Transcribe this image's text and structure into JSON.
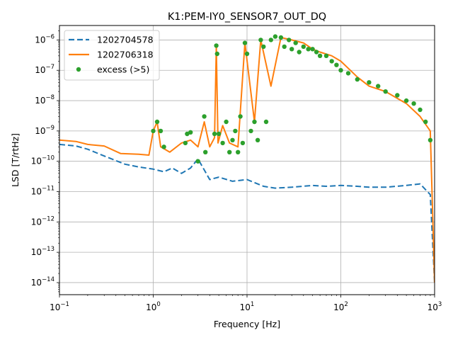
{
  "chart_data": {
    "type": "line",
    "title": "K1:PEM-IY0_SENSOR7_OUT_DQ",
    "xlabel": "Frequency [Hz]",
    "ylabel": "LSD [T/rtHz]",
    "xscale": "log",
    "yscale": "log",
    "xlim": [
      0.1,
      1000
    ],
    "ylim": [
      4e-15,
      3e-06
    ],
    "grid": true,
    "legend_position": "top-left",
    "x_ticks": [
      {
        "value": 0.1,
        "base": "10",
        "exp": "−1"
      },
      {
        "value": 1,
        "base": "10",
        "exp": "0"
      },
      {
        "value": 10,
        "base": "10",
        "exp": "1"
      },
      {
        "value": 100,
        "base": "10",
        "exp": "2"
      },
      {
        "value": 1000,
        "base": "10",
        "exp": "3"
      }
    ],
    "y_ticks": [
      {
        "value": 1e-14,
        "base": "10",
        "exp": "−14"
      },
      {
        "value": 1e-13,
        "base": "10",
        "exp": "−13"
      },
      {
        "value": 1e-12,
        "base": "10",
        "exp": "−12"
      },
      {
        "value": 1e-11,
        "base": "10",
        "exp": "−11"
      },
      {
        "value": 1e-10,
        "base": "10",
        "exp": "−10"
      },
      {
        "value": 1e-09,
        "base": "10",
        "exp": "−9"
      },
      {
        "value": 1e-08,
        "base": "10",
        "exp": "−8"
      },
      {
        "value": 1e-07,
        "base": "10",
        "exp": "−7"
      },
      {
        "value": 1e-06,
        "base": "10",
        "exp": "−6"
      }
    ],
    "series": [
      {
        "name": "1202704578",
        "color": "#1f77b4",
        "style": "dashed",
        "x": [
          0.1,
          0.15,
          0.2,
          0.3,
          0.5,
          0.7,
          1.0,
          1.3,
          1.6,
          2.0,
          2.5,
          3.0,
          4.0,
          5.0,
          7.0,
          10,
          15,
          20,
          30,
          50,
          70,
          100,
          150,
          200,
          300,
          500,
          700,
          900,
          1000
        ],
        "y": [
          3.6e-10,
          3.2e-10,
          2.5e-10,
          1.5e-10,
          8e-11,
          6.5e-11,
          5.5e-11,
          4.5e-11,
          6e-11,
          4e-11,
          6e-11,
          1.2e-10,
          2.5e-11,
          3e-11,
          2.2e-11,
          2.5e-11,
          1.5e-11,
          1.3e-11,
          1.4e-11,
          1.6e-11,
          1.5e-11,
          1.6e-11,
          1.5e-11,
          1.4e-11,
          1.4e-11,
          1.6e-11,
          1.8e-11,
          8e-12,
          1e-14
        ]
      },
      {
        "name": "1202706318",
        "color": "#ff7f0e",
        "style": "solid",
        "x": [
          0.1,
          0.15,
          0.2,
          0.3,
          0.45,
          0.7,
          0.9,
          1.0,
          1.1,
          1.2,
          1.5,
          2.0,
          2.5,
          3.0,
          3.5,
          4.0,
          4.5,
          4.7,
          4.9,
          5.5,
          6.5,
          8.0,
          9.5,
          12,
          14,
          18,
          23,
          30,
          40,
          50,
          60,
          80,
          100,
          150,
          200,
          300,
          500,
          700,
          900,
          1000
        ],
        "y": [
          5e-10,
          4.5e-10,
          3.6e-10,
          3.2e-10,
          1.8e-10,
          1.7e-10,
          1.6e-10,
          1e-09,
          2e-09,
          3e-10,
          2e-10,
          4e-10,
          5e-10,
          3e-10,
          2e-09,
          3e-10,
          6e-10,
          6e-07,
          4e-10,
          1.5e-09,
          4e-10,
          3e-10,
          8e-07,
          2e-09,
          1e-06,
          3e-08,
          1.2e-06,
          1e-06,
          8e-07,
          5e-07,
          4e-07,
          3e-07,
          2e-07,
          6e-08,
          3e-08,
          2e-08,
          8e-09,
          3e-09,
          1e-09,
          1e-14
        ]
      }
    ],
    "excess": {
      "name": "excess (>5)",
      "color": "#2ca02c",
      "x": [
        1.0,
        1.1,
        1.2,
        1.3,
        2.2,
        2.3,
        2.5,
        3.0,
        3.5,
        3.6,
        4.5,
        4.7,
        4.8,
        5.0,
        5.5,
        6.0,
        6.5,
        7.0,
        7.5,
        8.0,
        8.5,
        9.0,
        9.5,
        10,
        11,
        12,
        13,
        14,
        15,
        16,
        18,
        20,
        23,
        25,
        28,
        30,
        33,
        36,
        40,
        45,
        50,
        55,
        60,
        70,
        80,
        90,
        100,
        120,
        150,
        200,
        250,
        300,
        400,
        500,
        600,
        700,
        800,
        900
      ],
      "y": [
        1e-09,
        2e-09,
        1e-09,
        3e-10,
        4e-10,
        8e-10,
        9e-10,
        1e-10,
        3e-09,
        2e-10,
        8e-10,
        6.5e-07,
        3.5e-07,
        8e-10,
        4e-10,
        2e-09,
        2e-10,
        5e-10,
        1e-09,
        2e-10,
        3e-09,
        4e-10,
        8e-07,
        3.5e-07,
        1e-09,
        2e-09,
        5e-10,
        1e-06,
        6e-07,
        2e-09,
        1e-06,
        1.3e-06,
        1.2e-06,
        6e-07,
        1e-06,
        5e-07,
        8e-07,
        4e-07,
        6e-07,
        5e-07,
        5e-07,
        4e-07,
        3e-07,
        3e-07,
        2e-07,
        1.5e-07,
        1e-07,
        8e-08,
        5e-08,
        4e-08,
        3e-08,
        2e-08,
        1.5e-08,
        1e-08,
        8e-09,
        5e-09,
        2e-09,
        5e-10
      ]
    }
  }
}
